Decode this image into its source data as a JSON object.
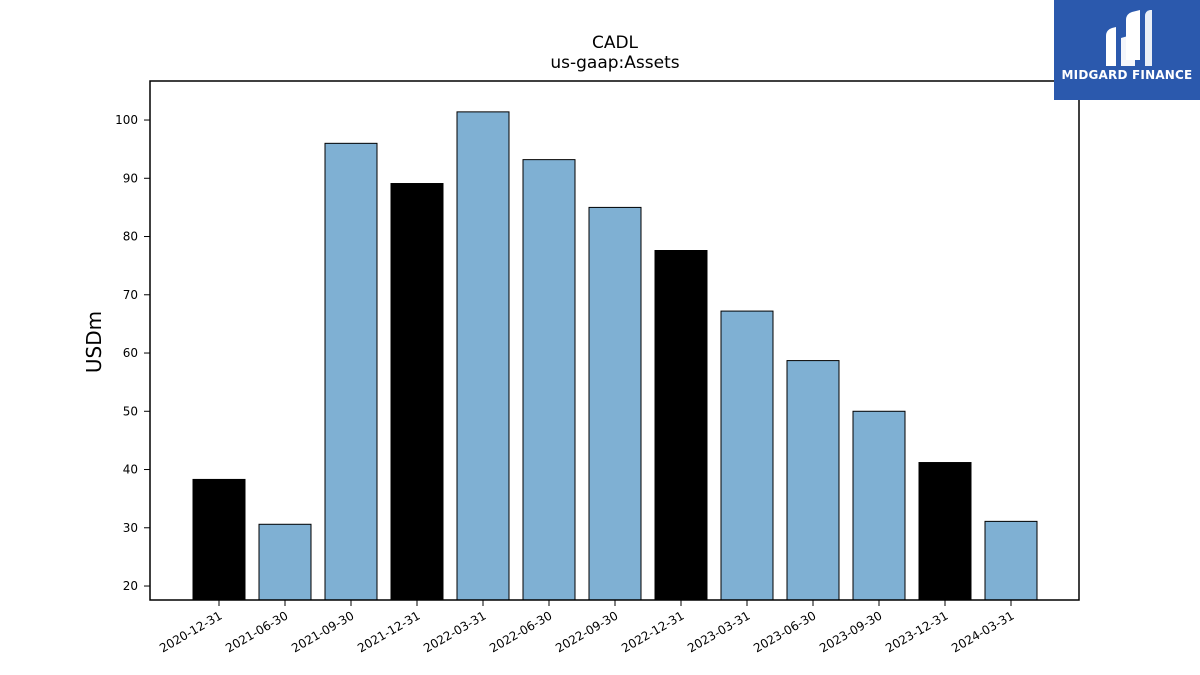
{
  "brand": {
    "name": "MIDGARD FINANCE",
    "bg_color": "#2b59ad"
  },
  "chart_data": {
    "type": "bar",
    "title": "CADL",
    "subtitle": "us-gaap:Assets",
    "xlabel": "",
    "ylabel": "USDm",
    "categories": [
      "2020-12-31",
      "2021-06-30",
      "2021-09-30",
      "2021-12-31",
      "2022-03-31",
      "2022-06-30",
      "2022-09-30",
      "2022-12-31",
      "2023-03-31",
      "2023-06-30",
      "2023-09-30",
      "2023-12-31",
      "2024-03-31"
    ],
    "values": [
      38.3,
      30.6,
      96.0,
      89.1,
      101.4,
      93.2,
      85.0,
      77.6,
      67.2,
      58.7,
      50.0,
      41.2,
      31.1
    ],
    "bar_colors": [
      "#000000",
      "#7fb0d3",
      "#7fb0d3",
      "#000000",
      "#7fb0d3",
      "#7fb0d3",
      "#7fb0d3",
      "#000000",
      "#7fb0d3",
      "#7fb0d3",
      "#7fb0d3",
      "#000000",
      "#7fb0d3"
    ],
    "yticks": [
      20,
      30,
      40,
      50,
      60,
      70,
      80,
      90,
      100
    ],
    "ylim": [
      17.6,
      106.7
    ],
    "grid": false,
    "legend": "none"
  }
}
